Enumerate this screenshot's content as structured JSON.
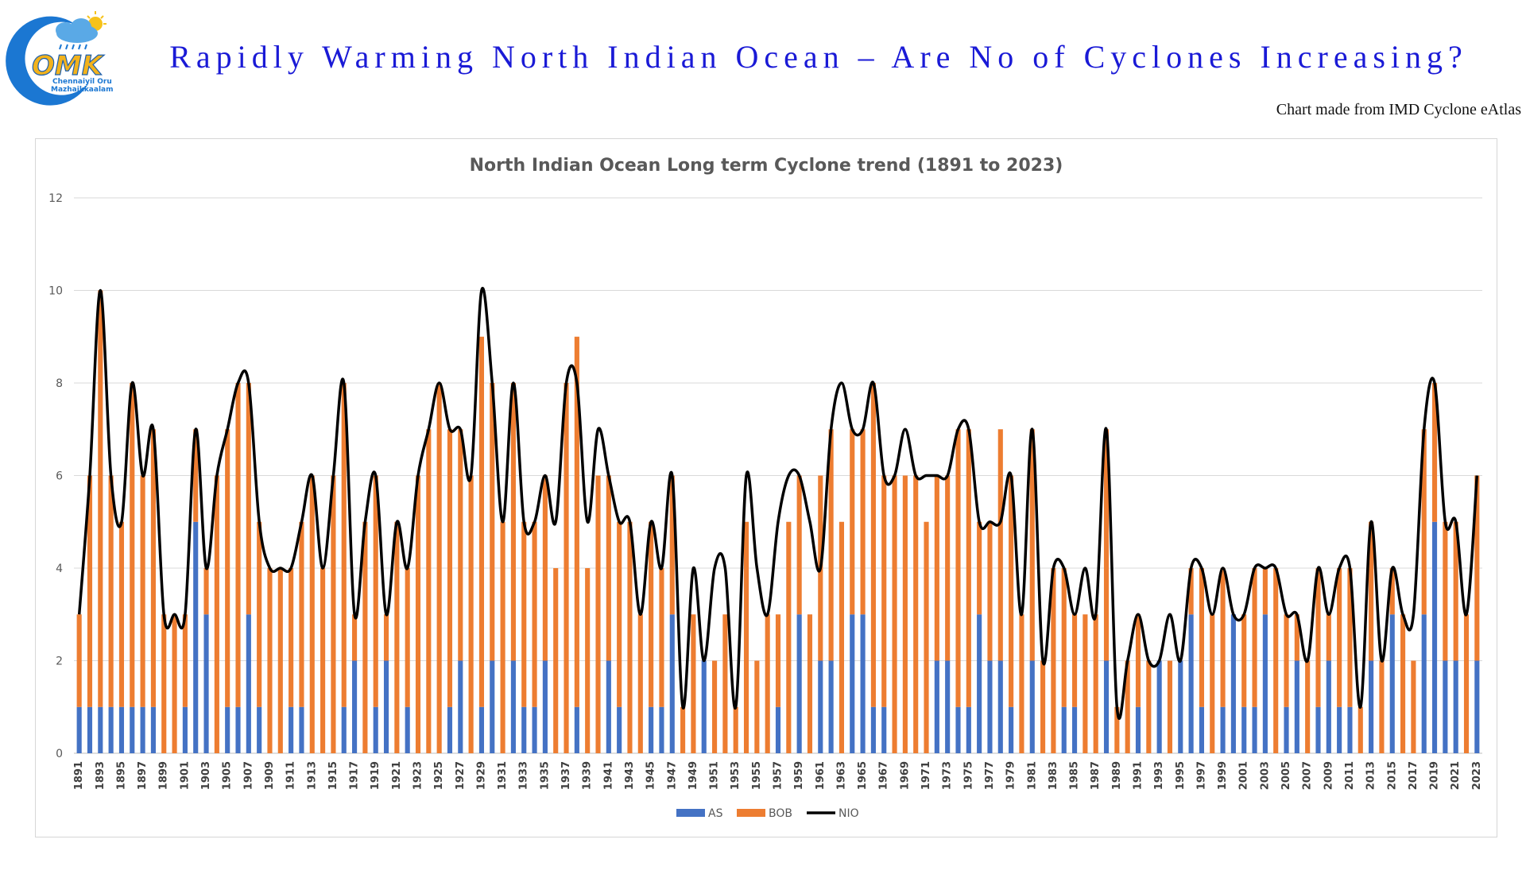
{
  "header": {
    "title": "Rapidly Warming North Indian Ocean – Are No of Cyclones Increasing?",
    "source_note": "Chart made from IMD Cyclone eAtlas"
  },
  "logo": {
    "text": "OMK",
    "subtext_1": "Chennaiyil Oru",
    "subtext_2": "Mazhaikkaalam",
    "icon": "cloud-sun-rain-icon"
  },
  "colors": {
    "as": "#4472c4",
    "bob": "#ed7d31",
    "nio": "#000000",
    "title": "#1a1ad6"
  },
  "chart_data": {
    "type": "bar",
    "stacked": true,
    "title": "North Indian Ocean Long term Cyclone trend (1891 to 2023)",
    "xlabel": "",
    "ylabel": "",
    "ylim": [
      0,
      12
    ],
    "yticks": [
      0,
      2,
      4,
      6,
      8,
      10,
      12
    ],
    "grid": true,
    "legend_position": "bottom",
    "x_start": 1891,
    "x_end": 2023,
    "series": [
      {
        "name": "AS",
        "kind": "bar",
        "values": [
          1,
          1,
          1,
          1,
          1,
          1,
          1,
          1,
          0,
          0,
          1,
          5,
          3,
          0,
          1,
          1,
          3,
          1,
          0,
          0,
          1,
          1,
          0,
          0,
          0,
          1,
          2,
          0,
          1,
          2,
          0,
          1,
          0,
          0,
          0,
          1,
          2,
          0,
          1,
          2,
          0,
          2,
          1,
          1,
          2,
          0,
          0,
          1,
          0,
          0,
          2,
          1,
          0,
          0,
          1,
          1,
          3,
          0,
          0,
          2,
          0,
          0,
          0,
          0,
          0,
          0,
          1,
          0,
          3,
          0,
          2,
          2,
          0,
          3,
          3,
          1,
          1,
          0,
          0,
          0,
          0,
          2,
          2,
          1,
          1,
          3,
          2,
          2,
          1,
          0,
          2,
          0,
          0,
          1,
          1,
          0,
          0,
          2,
          0,
          0,
          1,
          0,
          2,
          0,
          2,
          3,
          1,
          0,
          1,
          3,
          1,
          1,
          3,
          0,
          1,
          2,
          0,
          1,
          2,
          1,
          1,
          0,
          2,
          0,
          3,
          0,
          0,
          3,
          5,
          2,
          2,
          0,
          2
        ]
      },
      {
        "name": "BOB",
        "kind": "bar",
        "values": [
          2,
          5,
          9,
          5,
          4,
          7,
          5,
          6,
          3,
          3,
          2,
          2,
          1,
          6,
          6,
          7,
          5,
          4,
          4,
          4,
          3,
          4,
          6,
          4,
          6,
          7,
          1,
          5,
          5,
          1,
          5,
          3,
          6,
          7,
          8,
          6,
          5,
          6,
          8,
          6,
          5,
          6,
          4,
          4,
          4,
          4,
          8,
          8,
          4,
          6,
          4,
          4,
          5,
          3,
          4,
          3,
          3,
          1,
          3,
          0,
          2,
          3,
          1,
          5,
          2,
          3,
          2,
          5,
          3,
          3,
          4,
          5,
          5,
          4,
          4,
          7,
          5,
          6,
          6,
          6,
          5,
          4,
          4,
          6,
          6,
          2,
          3,
          5,
          5,
          3,
          5,
          2,
          4,
          3,
          2,
          3,
          3,
          5,
          1,
          2,
          2,
          2,
          0,
          2,
          0,
          1,
          3,
          3,
          3,
          0,
          2,
          3,
          1,
          4,
          2,
          1,
          2,
          3,
          1,
          3,
          3,
          1,
          3,
          2,
          1,
          3,
          2,
          4,
          3,
          3,
          3,
          3,
          4
        ]
      },
      {
        "name": "NIO",
        "kind": "line",
        "values": [
          3,
          6,
          10,
          6,
          5,
          8,
          6,
          7,
          3,
          3,
          3,
          7,
          4,
          6,
          7,
          8,
          8,
          5,
          4,
          4,
          4,
          5,
          6,
          4,
          6,
          8,
          3,
          5,
          6,
          3,
          5,
          4,
          6,
          7,
          8,
          7,
          7,
          6,
          10,
          8,
          5,
          8,
          5,
          5,
          6,
          5,
          8,
          8,
          5,
          7,
          6,
          5,
          5,
          3,
          5,
          4,
          6,
          1,
          4,
          2,
          4,
          4,
          1,
          6,
          4,
          3,
          5,
          6,
          6,
          5,
          4,
          7,
          8,
          7,
          7,
          8,
          6,
          6,
          7,
          6,
          6,
          6,
          6,
          7,
          7,
          5,
          5,
          5,
          6,
          3,
          7,
          2,
          4,
          4,
          3,
          4,
          3,
          7,
          1,
          2,
          3,
          2,
          2,
          3,
          2,
          4,
          4,
          3,
          4,
          3,
          3,
          4,
          4,
          4,
          3,
          3,
          2,
          4,
          3,
          4,
          4,
          1,
          5,
          2,
          4,
          3,
          3,
          7,
          8,
          5,
          5,
          3,
          6
        ]
      }
    ]
  }
}
